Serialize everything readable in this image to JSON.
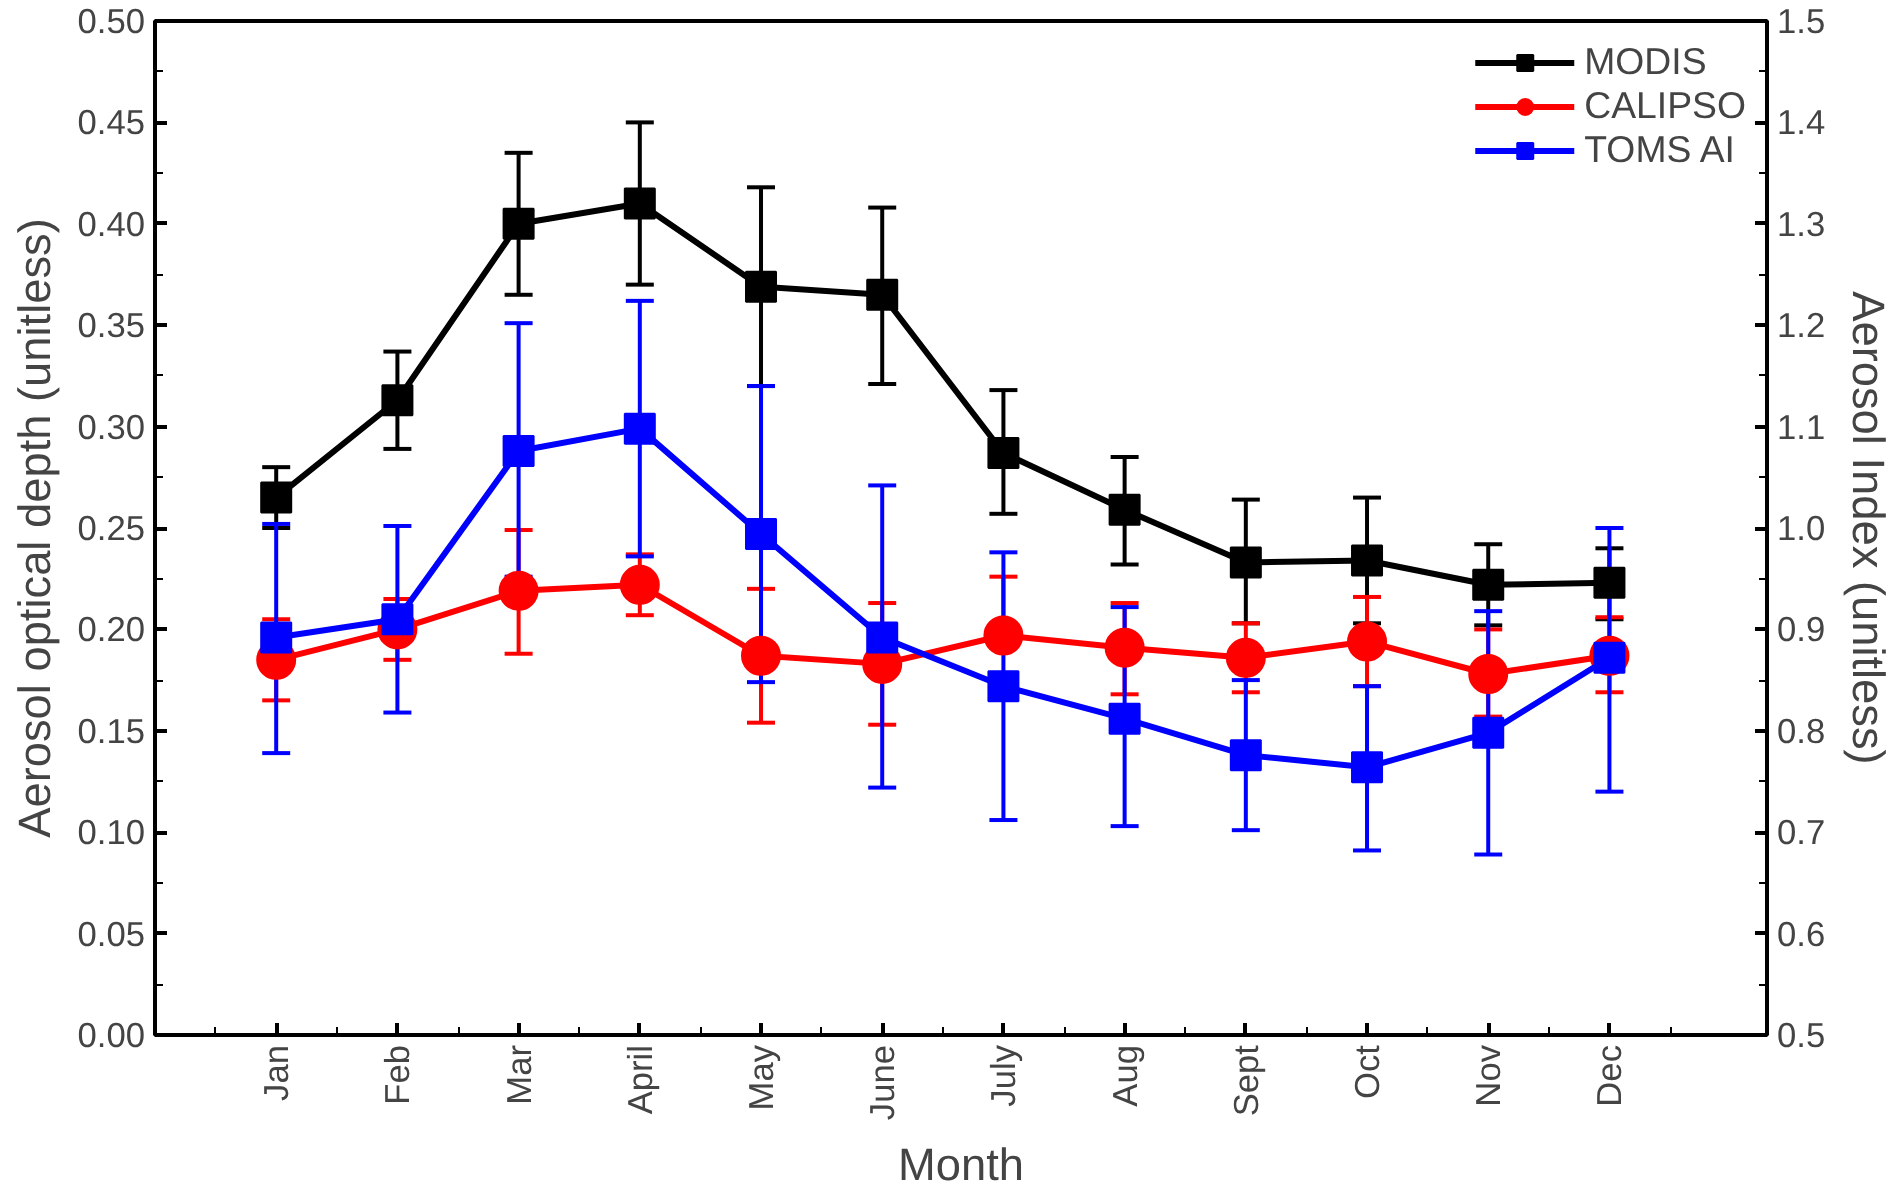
{
  "chart_data": {
    "type": "line",
    "xlabel": "Month",
    "ylabel": "Aerosol optical depth (unitless)",
    "y2label": "Aerosol Index (unitless)",
    "categories": [
      "Jan",
      "Feb",
      "Mar",
      "April",
      "May",
      "June",
      "July",
      "Aug",
      "Sept",
      "Oct",
      "Nov",
      "Dec"
    ],
    "ylim": [
      0,
      0.5
    ],
    "yticks": [
      {
        "value": 0,
        "label": "0.00"
      },
      0.05,
      {
        "value": 0.1,
        "label": "0.10"
      },
      0.15,
      {
        "value": 0.2,
        "label": "0.20"
      },
      0.25,
      {
        "value": 0.3,
        "label": "0.30"
      },
      0.35,
      {
        "value": 0.4,
        "label": "0.40"
      },
      0.45,
      {
        "value": 0.5,
        "label": "0.50"
      }
    ],
    "y2lim": [
      0.5,
      1.5
    ],
    "y2ticks": [
      0.5,
      0.6,
      0.7,
      0.8,
      0.9,
      {
        "value": 1,
        "label": "1.0"
      },
      1.1,
      1.2,
      1.3,
      1.4,
      1.5
    ],
    "grid": false,
    "legend": "top right",
    "line_style": "solid",
    "series": [
      {
        "name": "MODIS",
        "color": "#000000",
        "marker": "square",
        "values": [
          0.265,
          0.313,
          0.4,
          0.41,
          0.369,
          0.365,
          0.287,
          0.259,
          0.233,
          0.234,
          0.222,
          0.223
        ],
        "errors": [
          [
            0.25,
            0.28
          ],
          [
            0.289,
            0.337
          ],
          [
            0.365,
            0.435
          ],
          [
            0.37,
            0.45
          ],
          [
            0.32,
            0.418
          ],
          [
            0.321,
            0.408
          ],
          [
            0.257,
            0.318
          ],
          [
            0.232,
            0.285
          ],
          [
            0.203,
            0.264
          ],
          [
            0.203,
            0.265
          ],
          [
            0.202,
            0.242
          ],
          [
            0.205,
            0.24
          ]
        ]
      },
      {
        "name": "CALIPSO",
        "color": "#ff0000",
        "marker": "circle",
        "values": [
          0.185,
          0.2,
          0.219,
          0.222,
          0.187,
          0.183,
          0.197,
          0.191,
          0.186,
          0.194,
          0.178,
          0.187
        ],
        "errors": [
          [
            0.165,
            0.205
          ],
          [
            0.185,
            0.215
          ],
          [
            0.188,
            0.249
          ],
          [
            0.207,
            0.237
          ],
          [
            0.154,
            0.22
          ],
          [
            0.153,
            0.213
          ],
          [
            0.197,
            0.226
          ],
          [
            0.168,
            0.213
          ],
          [
            0.169,
            0.203
          ],
          [
            0.172,
            0.216
          ],
          [
            0.157,
            0.2
          ],
          [
            0.169,
            0.206
          ]
        ]
      },
      {
        "name": "TOMS AI",
        "color": "#0000ff",
        "marker": "square",
        "axis": "y2",
        "values": [
          0.892,
          0.91,
          1.076,
          1.098,
          0.994,
          0.892,
          0.844,
          0.812,
          0.776,
          0.764,
          0.798,
          0.872
        ],
        "errors": [
          [
            0.778,
            1.004
          ],
          [
            0.818,
            1.002
          ],
          [
            0.952,
            1.202
          ],
          [
            0.972,
            1.224
          ],
          [
            0.848,
            1.14
          ],
          [
            0.744,
            1.042
          ],
          [
            0.712,
            0.976
          ],
          [
            0.706,
            0.922
          ],
          [
            0.702,
            0.85
          ],
          [
            0.682,
            0.844
          ],
          [
            0.678,
            0.918
          ],
          [
            0.74,
            1.0
          ]
        ]
      }
    ]
  }
}
